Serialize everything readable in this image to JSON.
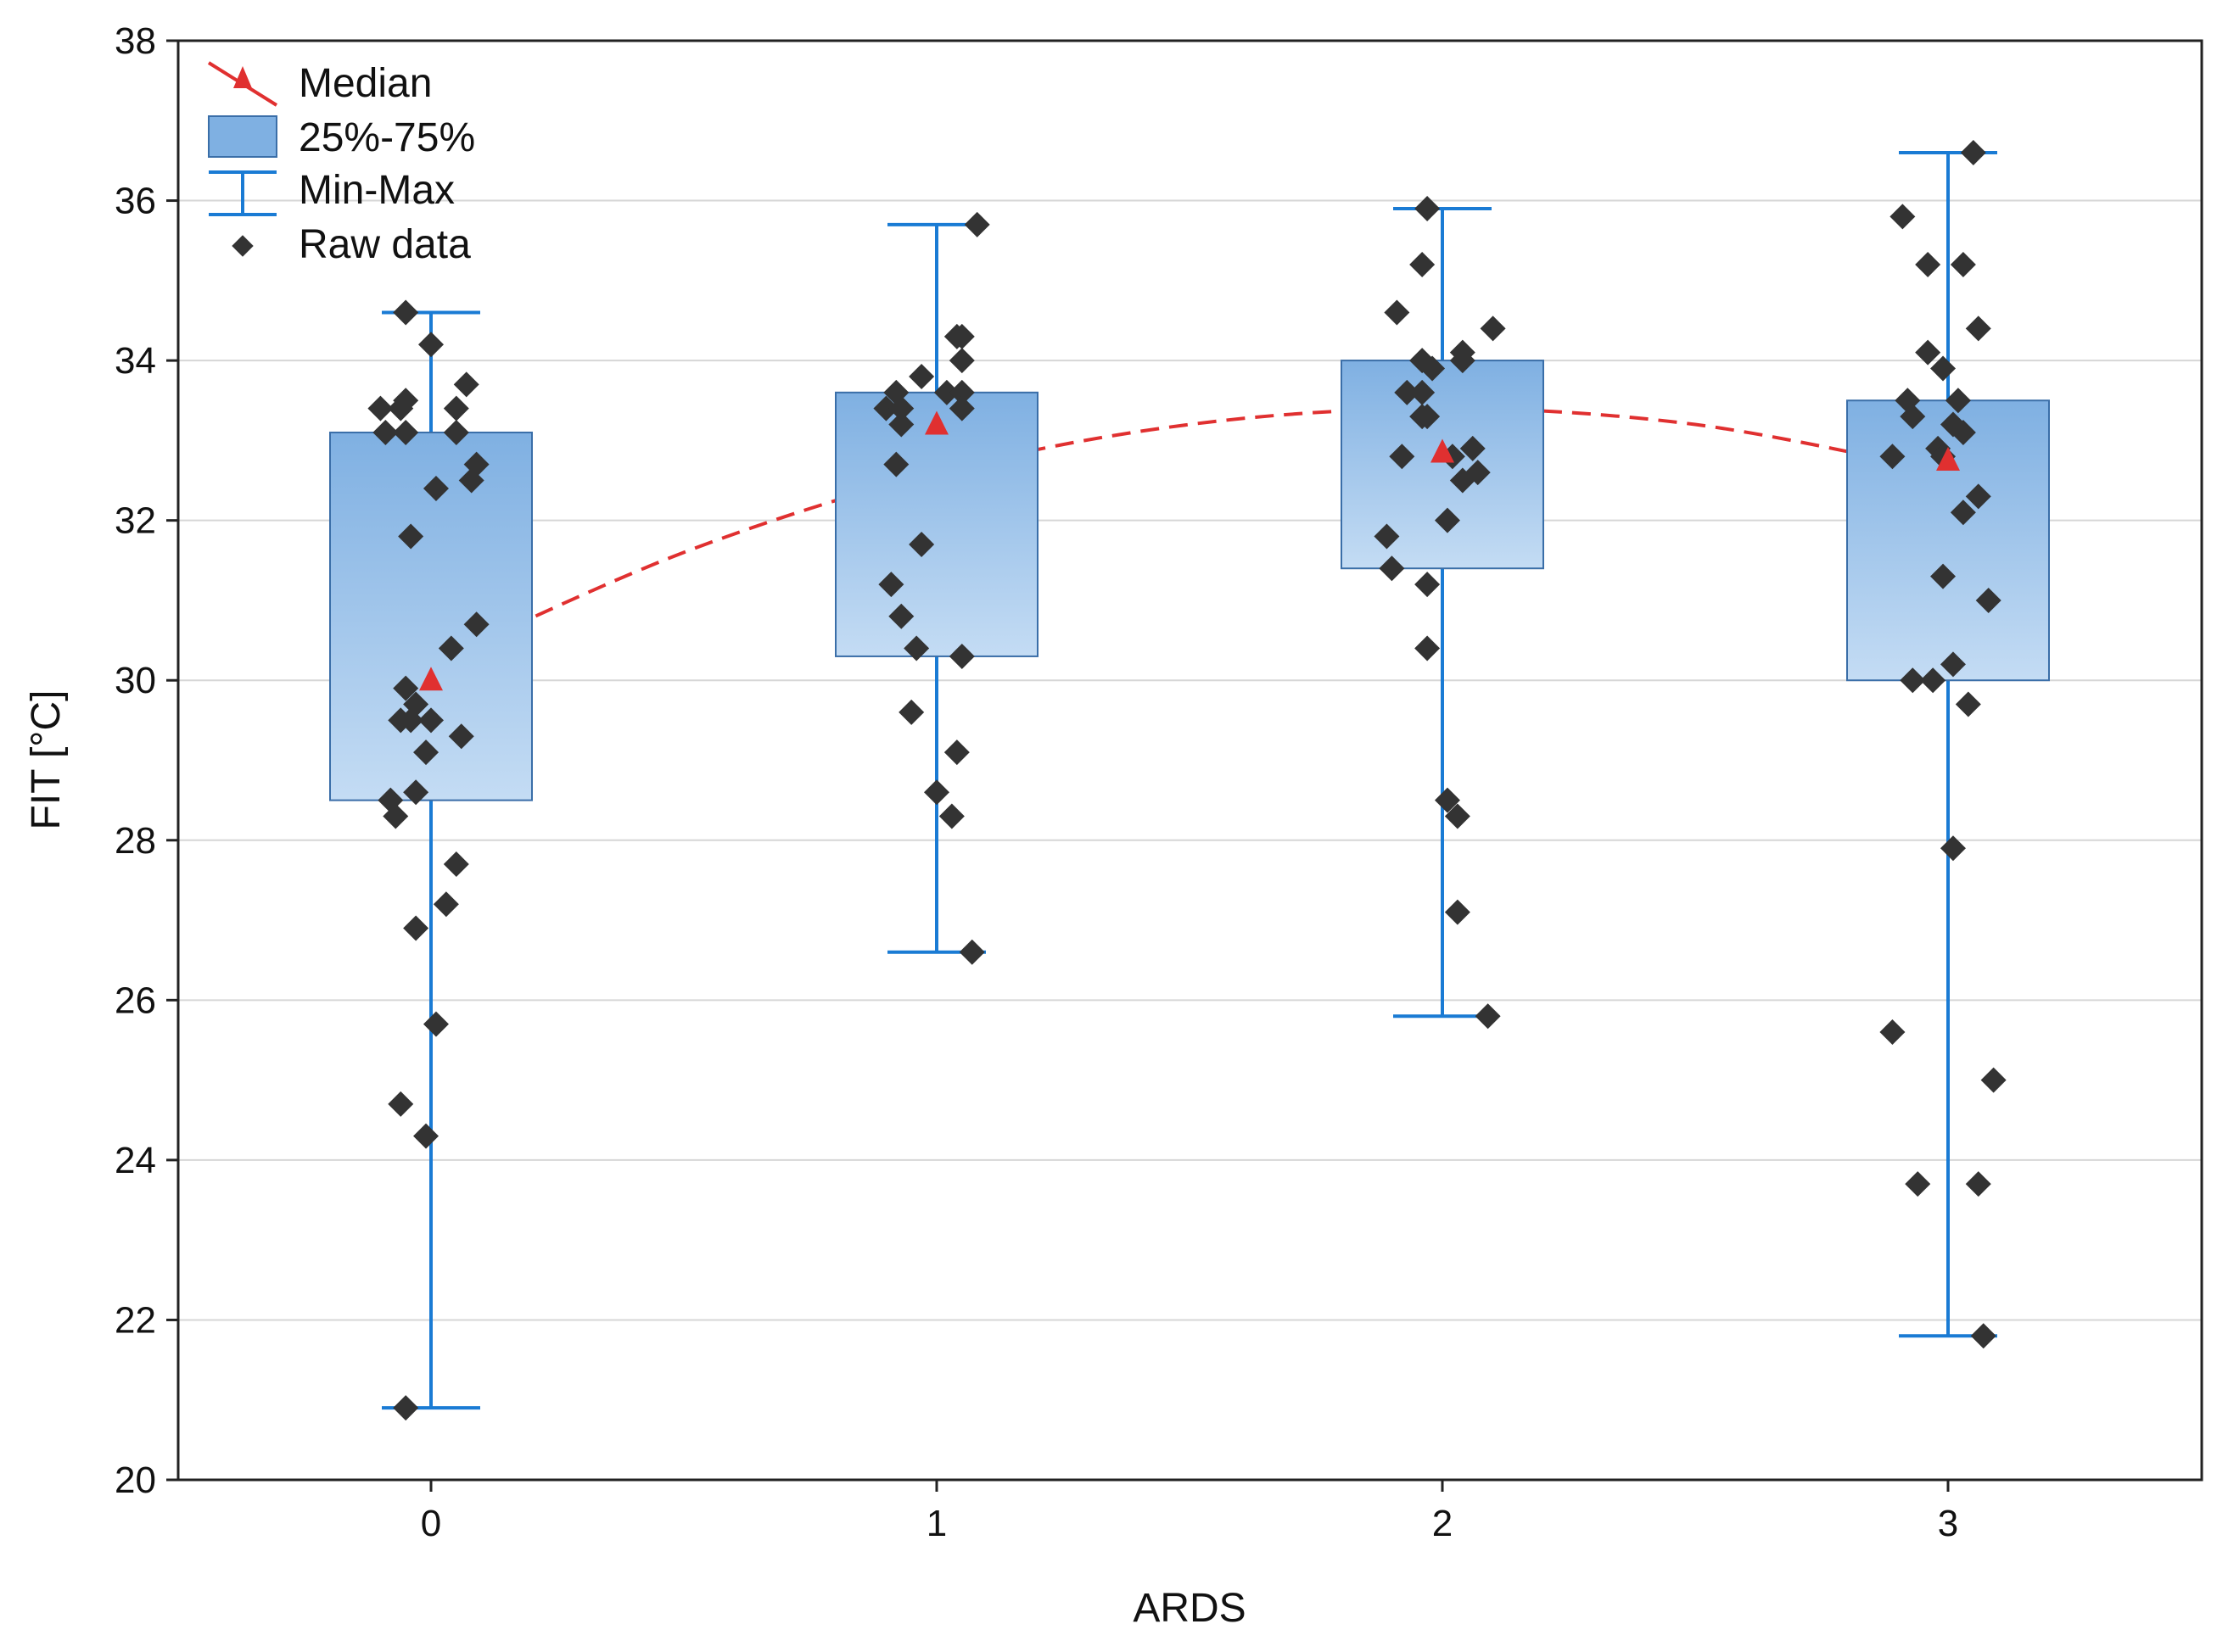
{
  "chart_data": {
    "type": "box",
    "title": "",
    "xlabel": "ARDS",
    "ylabel": "FIT [°C]",
    "categories": [
      "0",
      "1",
      "2",
      "3"
    ],
    "ylim": [
      20,
      38
    ],
    "yticks": [
      20,
      22,
      24,
      26,
      28,
      30,
      32,
      34,
      36,
      38
    ],
    "grid": true,
    "colors": {
      "box_fill_top": "#7fb0e2",
      "box_fill_bottom": "#c4dcf4",
      "box_stroke": "#3a6ea8",
      "whisker": "#1a7bd4",
      "median": "#e03030",
      "raw": "#333333",
      "grid": "#d6d6d6"
    },
    "legend": {
      "position": "top-left",
      "items": [
        {
          "label": "Median",
          "icon": "median-triangle-icon"
        },
        {
          "label": "25%-75%",
          "icon": "box-icon"
        },
        {
          "label": "Min-Max",
          "icon": "whisker-icon"
        },
        {
          "label": "Raw data",
          "icon": "diamond-icon"
        }
      ]
    },
    "boxes": [
      {
        "category": "0",
        "min": 20.9,
        "q1": 28.5,
        "median": 30.0,
        "q3": 33.1,
        "max": 34.6
      },
      {
        "category": "1",
        "min": 26.6,
        "q1": 30.3,
        "median": 33.2,
        "q3": 33.6,
        "max": 35.7
      },
      {
        "category": "2",
        "min": 25.8,
        "q1": 31.4,
        "median": 32.85,
        "q3": 34.0,
        "max": 35.9
      },
      {
        "category": "3",
        "min": 21.8,
        "q1": 30.0,
        "median": 32.75,
        "q3": 33.5,
        "max": 36.6
      }
    ],
    "trend_line": {
      "style": "dashed",
      "points": [
        [
          0,
          30.2
        ],
        [
          0.5,
          31.6
        ],
        [
          1,
          32.6
        ],
        [
          1.5,
          33.2
        ],
        [
          2,
          33.4
        ],
        [
          2.5,
          33.2
        ],
        [
          3,
          32.6
        ]
      ]
    },
    "raw_data": [
      {
        "category": "0",
        "points": [
          {
            "x": -0.05,
            "y": 34.6
          },
          {
            "x": 0.0,
            "y": 34.2
          },
          {
            "x": 0.07,
            "y": 33.7
          },
          {
            "x": -0.1,
            "y": 33.4
          },
          {
            "x": -0.06,
            "y": 33.4
          },
          {
            "x": -0.05,
            "y": 33.5
          },
          {
            "x": 0.05,
            "y": 33.4
          },
          {
            "x": -0.09,
            "y": 33.1
          },
          {
            "x": -0.05,
            "y": 33.1
          },
          {
            "x": 0.05,
            "y": 33.1
          },
          {
            "x": 0.09,
            "y": 32.7
          },
          {
            "x": 0.08,
            "y": 32.5
          },
          {
            "x": 0.01,
            "y": 32.4
          },
          {
            "x": -0.04,
            "y": 31.8
          },
          {
            "x": 0.09,
            "y": 30.7
          },
          {
            "x": 0.04,
            "y": 30.4
          },
          {
            "x": -0.05,
            "y": 29.9
          },
          {
            "x": -0.03,
            "y": 29.7
          },
          {
            "x": -0.06,
            "y": 29.5
          },
          {
            "x": -0.04,
            "y": 29.5
          },
          {
            "x": 0.0,
            "y": 29.5
          },
          {
            "x": 0.06,
            "y": 29.3
          },
          {
            "x": -0.01,
            "y": 29.1
          },
          {
            "x": -0.03,
            "y": 28.6
          },
          {
            "x": -0.08,
            "y": 28.5
          },
          {
            "x": -0.07,
            "y": 28.3
          },
          {
            "x": 0.05,
            "y": 27.7
          },
          {
            "x": 0.03,
            "y": 27.2
          },
          {
            "x": -0.03,
            "y": 26.9
          },
          {
            "x": 0.01,
            "y": 25.7
          },
          {
            "x": -0.06,
            "y": 24.7
          },
          {
            "x": -0.01,
            "y": 24.3
          },
          {
            "x": -0.05,
            "y": 20.9
          }
        ]
      },
      {
        "category": "1",
        "points": [
          {
            "x": 1.08,
            "y": 35.7
          },
          {
            "x": 1.05,
            "y": 34.3
          },
          {
            "x": 1.04,
            "y": 34.3
          },
          {
            "x": 1.05,
            "y": 34.0
          },
          {
            "x": 0.97,
            "y": 33.8
          },
          {
            "x": 0.92,
            "y": 33.6
          },
          {
            "x": 1.02,
            "y": 33.6
          },
          {
            "x": 1.05,
            "y": 33.6
          },
          {
            "x": 0.9,
            "y": 33.4
          },
          {
            "x": 0.93,
            "y": 33.4
          },
          {
            "x": 1.05,
            "y": 33.4
          },
          {
            "x": 0.93,
            "y": 33.2
          },
          {
            "x": 0.92,
            "y": 32.7
          },
          {
            "x": 0.97,
            "y": 31.7
          },
          {
            "x": 0.91,
            "y": 31.2
          },
          {
            "x": 0.93,
            "y": 30.8
          },
          {
            "x": 0.96,
            "y": 30.4
          },
          {
            "x": 1.05,
            "y": 30.3
          },
          {
            "x": 0.95,
            "y": 29.6
          },
          {
            "x": 1.04,
            "y": 29.1
          },
          {
            "x": 1.0,
            "y": 28.6
          },
          {
            "x": 1.03,
            "y": 28.3
          },
          {
            "x": 1.07,
            "y": 26.6
          }
        ]
      },
      {
        "category": "2",
        "points": [
          {
            "x": 1.97,
            "y": 35.9
          },
          {
            "x": 1.96,
            "y": 35.2
          },
          {
            "x": 1.91,
            "y": 34.6
          },
          {
            "x": 2.1,
            "y": 34.4
          },
          {
            "x": 2.04,
            "y": 34.1
          },
          {
            "x": 2.04,
            "y": 34.0
          },
          {
            "x": 1.96,
            "y": 34.0
          },
          {
            "x": 1.98,
            "y": 33.9
          },
          {
            "x": 1.93,
            "y": 33.6
          },
          {
            "x": 1.96,
            "y": 33.6
          },
          {
            "x": 1.96,
            "y": 33.3
          },
          {
            "x": 1.97,
            "y": 33.3
          },
          {
            "x": 2.06,
            "y": 32.9
          },
          {
            "x": 1.92,
            "y": 32.8
          },
          {
            "x": 2.02,
            "y": 32.8
          },
          {
            "x": 2.07,
            "y": 32.6
          },
          {
            "x": 2.04,
            "y": 32.5
          },
          {
            "x": 2.01,
            "y": 32.0
          },
          {
            "x": 1.89,
            "y": 31.8
          },
          {
            "x": 1.9,
            "y": 31.4
          },
          {
            "x": 1.97,
            "y": 31.2
          },
          {
            "x": 1.97,
            "y": 30.4
          },
          {
            "x": 2.01,
            "y": 28.5
          },
          {
            "x": 2.03,
            "y": 28.3
          },
          {
            "x": 2.03,
            "y": 27.1
          },
          {
            "x": 2.09,
            "y": 25.8
          }
        ]
      },
      {
        "category": "3",
        "points": [
          {
            "x": 3.05,
            "y": 36.6
          },
          {
            "x": 2.91,
            "y": 35.8
          },
          {
            "x": 2.96,
            "y": 35.2
          },
          {
            "x": 3.03,
            "y": 35.2
          },
          {
            "x": 3.06,
            "y": 34.4
          },
          {
            "x": 2.96,
            "y": 34.1
          },
          {
            "x": 2.99,
            "y": 33.9
          },
          {
            "x": 2.92,
            "y": 33.5
          },
          {
            "x": 3.02,
            "y": 33.5
          },
          {
            "x": 2.93,
            "y": 33.3
          },
          {
            "x": 3.01,
            "y": 33.2
          },
          {
            "x": 3.03,
            "y": 33.1
          },
          {
            "x": 2.98,
            "y": 32.9
          },
          {
            "x": 2.89,
            "y": 32.8
          },
          {
            "x": 2.99,
            "y": 32.8
          },
          {
            "x": 3.06,
            "y": 32.3
          },
          {
            "x": 3.03,
            "y": 32.1
          },
          {
            "x": 2.99,
            "y": 31.3
          },
          {
            "x": 3.08,
            "y": 31.0
          },
          {
            "x": 3.01,
            "y": 30.2
          },
          {
            "x": 2.93,
            "y": 30.0
          },
          {
            "x": 2.97,
            "y": 30.0
          },
          {
            "x": 3.04,
            "y": 29.7
          },
          {
            "x": 3.01,
            "y": 27.9
          },
          {
            "x": 2.89,
            "y": 25.6
          },
          {
            "x": 3.09,
            "y": 25.0
          },
          {
            "x": 2.94,
            "y": 23.7
          },
          {
            "x": 3.06,
            "y": 23.7
          },
          {
            "x": 3.07,
            "y": 21.8
          }
        ]
      }
    ]
  }
}
